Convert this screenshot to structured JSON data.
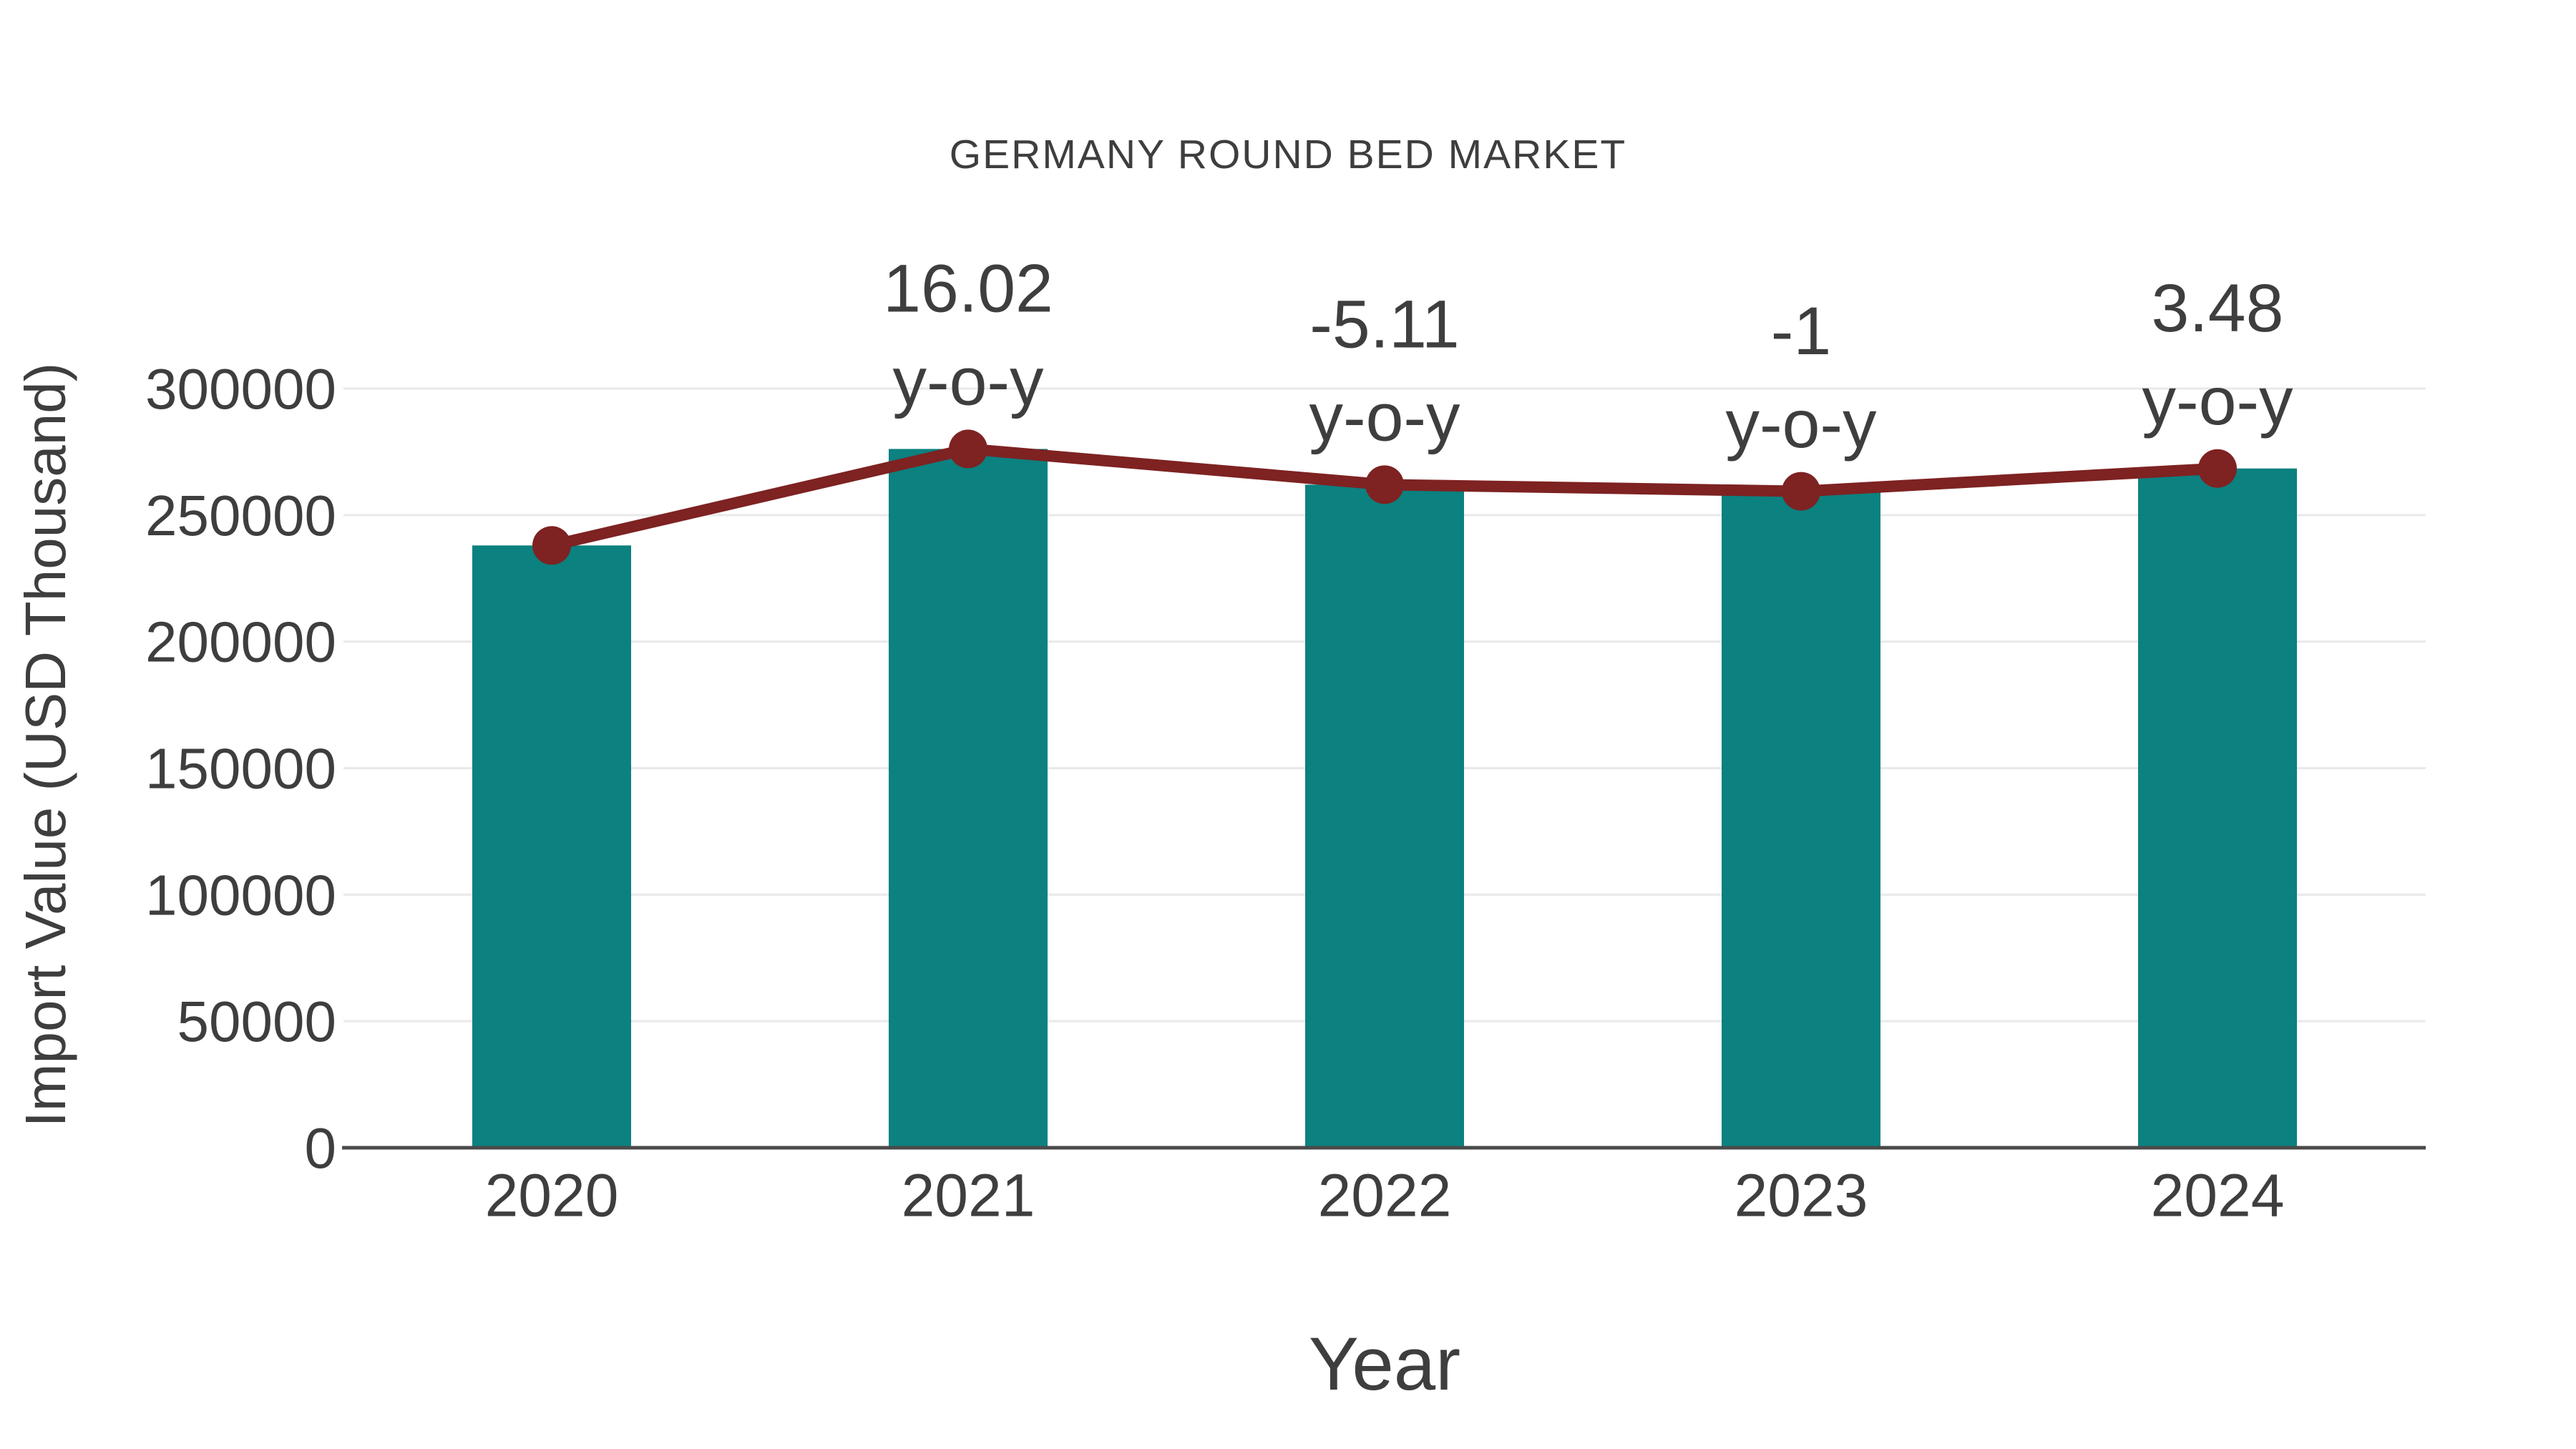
{
  "chart_data": {
    "type": "bar",
    "title": "GERMANY ROUND BED MARKET",
    "xlabel": "Year",
    "ylabel": "Import Value (USD Thousand)",
    "categories": [
      "2020",
      "2021",
      "2022",
      "2023",
      "2024"
    ],
    "series": [
      {
        "name": "Import Value bars",
        "type": "bar",
        "color": "#0b8180",
        "values": [
          238000,
          276130,
          262020,
          259400,
          268420
        ]
      },
      {
        "name": "Import Value trend line",
        "type": "line",
        "color": "#7e2222",
        "values": [
          238000,
          276130,
          262020,
          259400,
          268420
        ]
      }
    ],
    "annotations": [
      {
        "category": "2021",
        "value_label": "16.02",
        "suffix_label": "y-o-y",
        "yoy_percent": 16.02
      },
      {
        "category": "2022",
        "value_label": "-5.11",
        "suffix_label": "y-o-y",
        "yoy_percent": -5.11
      },
      {
        "category": "2023",
        "value_label": "-1",
        "suffix_label": "y-o-y",
        "yoy_percent": -1
      },
      {
        "category": "2024",
        "value_label": "3.48",
        "suffix_label": "y-o-y",
        "yoy_percent": 3.48
      }
    ],
    "y_ticks": [
      0,
      50000,
      100000,
      150000,
      200000,
      250000,
      300000
    ],
    "ylim": [
      0,
      300000
    ],
    "grid": true,
    "legend": "none",
    "colors": {
      "bar": "#0b8180",
      "line": "#7e2222",
      "marker": "#7e2222",
      "text": "#3e3e3e",
      "gridline": "#e9e9e9",
      "axis_line": "#4a4a4a",
      "background": "#ffffff"
    }
  }
}
